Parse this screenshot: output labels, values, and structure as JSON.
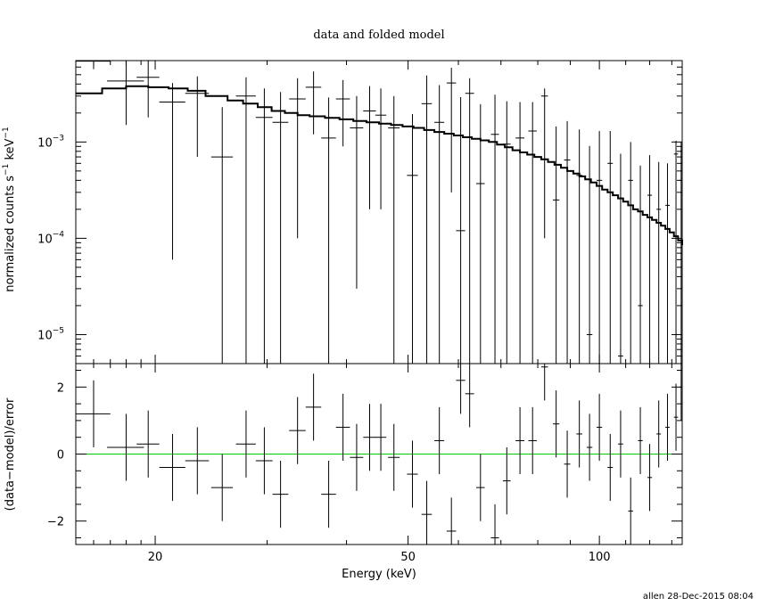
{
  "chart_data": [
    {
      "type": "scatter",
      "title": "data and folded model",
      "ylabel": "normalized counts s",
      "ylabel_sup1": "−1",
      "ylabel_mid": " keV",
      "ylabel_sup2": "−1",
      "xscale": "log",
      "yscale": "log",
      "xlim": [
        15,
        135
      ],
      "ylim": [
        5e-06,
        0.007
      ],
      "yticks": [
        {
          "value": 0.001,
          "base": "10",
          "exp": "−3"
        },
        {
          "value": 0.0001,
          "base": "10",
          "exp": "−4"
        },
        {
          "value": 1e-05,
          "base": "10",
          "exp": "−5"
        }
      ],
      "series": [
        {
          "type": "errorbar",
          "points": [
            [
              16.0,
              0.0069,
              1.0,
              0.0012,
              0.0017
            ],
            [
              18.0,
              0.0043,
              1.2,
              0.0028,
              0.0026
            ],
            [
              19.5,
              0.0047,
              0.8,
              0.0029,
              0.0024
            ],
            [
              21.3,
              0.0026,
              1.0,
              0.00254,
              0.0015
            ],
            [
              23.3,
              0.0032,
              1.0,
              0.0025,
              0.0016
            ],
            [
              25.5,
              0.0007,
              1.0,
              0.000695,
              0.0016
            ],
            [
              27.8,
              0.003,
              1.0,
              0.002995,
              0.0017
            ],
            [
              29.7,
              0.0018,
              0.9,
              0.001795,
              0.0018
            ],
            [
              31.5,
              0.0016,
              0.9,
              0.001595,
              0.0017
            ],
            [
              33.5,
              0.0028,
              1.0,
              0.0027,
              0.0018
            ],
            [
              35.5,
              0.0037,
              1.0,
              0.0025,
              0.0017
            ],
            [
              37.5,
              0.0011,
              1.0,
              0.001095,
              0.0018
            ],
            [
              39.5,
              0.0028,
              1.0,
              0.0019,
              0.0016
            ],
            [
              41.5,
              0.0014,
              1.0,
              0.00137,
              0.0016
            ],
            [
              43.5,
              0.0021,
              1.0,
              0.0019,
              0.0017
            ],
            [
              45.3,
              0.0019,
              0.9,
              0.0017,
              0.0017
            ],
            [
              47.5,
              0.0014,
              1.0,
              0.001395,
              0.0016
            ],
            [
              50.8,
              0.00045,
              1.0,
              0.000445,
              0.0015
            ],
            [
              53.5,
              0.0025,
              1.0,
              0.002495,
              0.0024
            ],
            [
              56.0,
              0.0016,
              1.0,
              0.001595,
              0.0023
            ],
            [
              58.5,
              0.0041,
              1.0,
              0.0038,
              0.0018
            ],
            [
              60.5,
              0.00012,
              1.0,
              0.000115,
              0.0028
            ],
            [
              62.5,
              0.0032,
              1.0,
              0.003195,
              0.0014
            ],
            [
              65.0,
              0.00037,
              1.0,
              0.000365,
              0.0021
            ],
            [
              68.5,
              0.0012,
              1.0,
              0.001195,
              0.0019
            ],
            [
              71.5,
              0.00095,
              1.0,
              0.000945,
              0.0017
            ],
            [
              75.0,
              0.0011,
              1.2,
              0.001095,
              0.0015
            ],
            [
              78.5,
              0.0013,
              1.2,
              0.001295,
              0.0013
            ],
            [
              82.0,
              0.003,
              1.0,
              0.0029,
              0.0006
            ],
            [
              85.5,
              0.00025,
              1.0,
              0.000245,
              0.0012
            ],
            [
              89.0,
              0.00065,
              1.0,
              0.000645,
              0.001
            ],
            [
              93.0,
              0.00045,
              1.0,
              0.000445,
              0.0009
            ],
            [
              96.5,
              1e-05,
              1.0,
              9.9e-06,
              0.0009
            ],
            [
              100.0,
              0.0004,
              1.0,
              0.000395,
              0.0009
            ],
            [
              104.0,
              0.0006,
              1.0,
              0.000595,
              0.0007
            ],
            [
              108.0,
              6e-06,
              1.0,
              5.9e-06,
              0.00075
            ],
            [
              112.0,
              0.0004,
              1.0,
              0.000395,
              0.0006
            ],
            [
              116.0,
              2e-05,
              1.0,
              1.99e-05,
              0.00055
            ],
            [
              120.0,
              0.00028,
              1.0,
              0.000275,
              0.00045
            ],
            [
              124.0,
              0.0002,
              1.0,
              0.000195,
              0.00042
            ],
            [
              128.0,
              0.00022,
              1.0,
              0.000215,
              0.00038
            ],
            [
              132.0,
              0.00075,
              1.0,
              0.000745,
              0.00028
            ],
            [
              134.5,
              0.0004,
              0.8,
              0.000395,
              0.0006
            ]
          ]
        },
        {
          "type": "step",
          "x": [
            15,
            16.5,
            18.0,
            19.5,
            21.0,
            22.5,
            24.0,
            26.0,
            27.5,
            29.0,
            30.5,
            32.0,
            33.5,
            35.0,
            37.0,
            39.0,
            41.0,
            43.0,
            45.0,
            47.0,
            49.0,
            51.0,
            53.0,
            55.0,
            57.0,
            59.0,
            61.0,
            63.0,
            65.0,
            67.0,
            69.0,
            71.0,
            73.0,
            75.0,
            77.0,
            79.0,
            81.0,
            83.0,
            85.0,
            87.0,
            89.0,
            91.0,
            93.0,
            95.0,
            97.0,
            99.0,
            101.0,
            103.0,
            105.0,
            107.0,
            109.0,
            111.0,
            113.0,
            115.0,
            117.0,
            119.0,
            121.0,
            123.0,
            125.0,
            127.0,
            129.0,
            131.0,
            133.0,
            135
          ],
          "y": [
            0.0032,
            0.0036,
            0.0038,
            0.0037,
            0.0036,
            0.0034,
            0.003,
            0.0027,
            0.0025,
            0.0023,
            0.0021,
            0.002,
            0.0019,
            0.00185,
            0.00178,
            0.00172,
            0.00165,
            0.0016,
            0.00155,
            0.0015,
            0.00145,
            0.0014,
            0.00133,
            0.00127,
            0.00122,
            0.00117,
            0.00112,
            0.00108,
            0.00104,
            0.001,
            0.00094,
            0.00088,
            0.00082,
            0.00078,
            0.00074,
            0.0007,
            0.00066,
            0.00062,
            0.00058,
            0.00054,
            0.0005,
            0.00047,
            0.00044,
            0.00041,
            0.00038,
            0.00035,
            0.00032,
            0.0003,
            0.00028,
            0.00026,
            0.00024,
            0.00022,
            0.0002,
            0.00019,
            0.000175,
            0.000165,
            0.000155,
            0.000145,
            0.000135,
            0.000125,
            0.000115,
            0.000105,
            9.5e-05,
            8.5e-05
          ]
        }
      ]
    },
    {
      "type": "scatter",
      "xlabel": "Energy (keV)",
      "ylabel": "(data−model)/error",
      "xscale": "log",
      "xlim": [
        15,
        135
      ],
      "ylim": [
        -2.7,
        2.7
      ],
      "xticks": [
        {
          "value": 20,
          "label": "20"
        },
        {
          "value": 50,
          "label": "50"
        },
        {
          "value": 100,
          "label": "100"
        }
      ],
      "yticks": [
        {
          "value": 2,
          "label": "2"
        },
        {
          "value": 0,
          "label": "0"
        },
        {
          "value": -2,
          "label": "−2"
        }
      ],
      "series": [
        {
          "type": "errorbar",
          "points": [
            [
              16.0,
              1.2,
              1.0,
              1.0,
              1.0
            ],
            [
              18.0,
              0.2,
              1.2,
              1.0,
              1.0
            ],
            [
              19.5,
              0.3,
              0.8,
              1.0,
              1.0
            ],
            [
              21.3,
              -0.4,
              1.0,
              1.0,
              1.0
            ],
            [
              23.3,
              -0.2,
              1.0,
              1.0,
              1.0
            ],
            [
              25.5,
              -1.0,
              1.0,
              1.0,
              1.0
            ],
            [
              27.8,
              0.3,
              1.0,
              1.0,
              1.0
            ],
            [
              29.7,
              -0.2,
              0.9,
              1.0,
              1.0
            ],
            [
              31.5,
              -1.2,
              0.9,
              1.0,
              1.0
            ],
            [
              33.5,
              0.7,
              1.0,
              1.0,
              1.0
            ],
            [
              35.5,
              1.4,
              1.0,
              1.0,
              1.0
            ],
            [
              37.5,
              -1.2,
              1.0,
              1.0,
              1.0
            ],
            [
              39.5,
              0.8,
              1.0,
              1.0,
              1.0
            ],
            [
              41.5,
              -0.1,
              1.0,
              1.0,
              1.0
            ],
            [
              43.5,
              0.5,
              1.0,
              1.0,
              1.0
            ],
            [
              45.3,
              0.5,
              0.9,
              1.0,
              1.0
            ],
            [
              47.5,
              -0.1,
              1.0,
              1.0,
              1.0
            ],
            [
              50.8,
              -0.6,
              1.0,
              1.0,
              1.0
            ],
            [
              53.5,
              -1.8,
              1.0,
              1.0,
              1.0
            ],
            [
              56.0,
              0.4,
              1.0,
              1.0,
              1.0
            ],
            [
              58.5,
              -2.3,
              1.0,
              1.0,
              1.0
            ],
            [
              60.5,
              2.2,
              1.0,
              1.0,
              1.0
            ],
            [
              62.5,
              1.8,
              1.0,
              1.0,
              1.0
            ],
            [
              65.0,
              -1.0,
              1.0,
              1.0,
              1.0
            ],
            [
              68.5,
              -2.5,
              1.0,
              1.0,
              1.0
            ],
            [
              71.5,
              -0.8,
              1.0,
              1.0,
              1.0
            ],
            [
              75.0,
              0.4,
              1.2,
              1.0,
              1.0
            ],
            [
              78.5,
              0.4,
              1.2,
              1.0,
              1.0
            ],
            [
              82.0,
              2.6,
              1.0,
              1.0,
              1.0
            ],
            [
              85.5,
              0.9,
              1.0,
              1.0,
              1.0
            ],
            [
              89.0,
              -0.3,
              1.0,
              1.0,
              1.0
            ],
            [
              93.0,
              0.6,
              1.0,
              1.0,
              1.0
            ],
            [
              96.5,
              0.2,
              1.0,
              1.0,
              1.0
            ],
            [
              100.0,
              0.8,
              1.0,
              1.0,
              1.0
            ],
            [
              104.0,
              -0.4,
              1.0,
              1.0,
              1.0
            ],
            [
              108.0,
              0.3,
              1.0,
              1.0,
              1.0
            ],
            [
              112.0,
              -1.7,
              1.0,
              1.0,
              1.0
            ],
            [
              116.0,
              0.4,
              1.0,
              1.0,
              1.0
            ],
            [
              120.0,
              -0.7,
              1.0,
              1.0,
              1.0
            ],
            [
              124.0,
              0.6,
              1.0,
              1.0,
              1.0
            ],
            [
              128.0,
              0.8,
              1.0,
              1.0,
              1.0
            ],
            [
              132.0,
              1.1,
              1.0,
              1.0,
              1.0
            ],
            [
              134.5,
              2.0,
              0.8,
              1.0,
              1.0
            ]
          ]
        },
        {
          "type": "hline",
          "y": 0,
          "color": "#00cc00"
        }
      ]
    }
  ],
  "footer": "allen 28-Dec-2015 08:04"
}
